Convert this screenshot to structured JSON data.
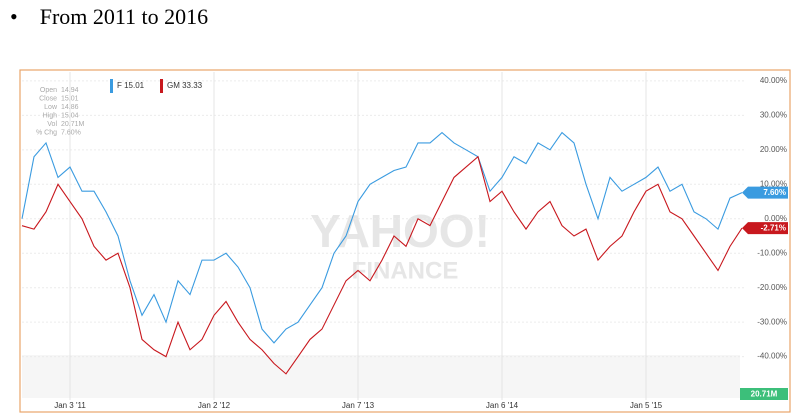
{
  "slide": {
    "bullet": "From 2011 to 2016"
  },
  "chart_data": {
    "type": "line",
    "categories": [
      null,
      null,
      null,
      null,
      "Jan 3 '11",
      null,
      null,
      null,
      null,
      null,
      null,
      null,
      null,
      null,
      null,
      null,
      "Jan 2 '12",
      null,
      null,
      null,
      null,
      null,
      null,
      null,
      null,
      null,
      null,
      null,
      "Jan 7 '13",
      null,
      null,
      null,
      null,
      null,
      null,
      null,
      null,
      null,
      null,
      null,
      "Jan 6 '14",
      null,
      null,
      null,
      null,
      null,
      null,
      null,
      null,
      null,
      null,
      null,
      "Jan 5 '15",
      null,
      null,
      null,
      null,
      null,
      null,
      null,
      null
    ],
    "series": [
      {
        "name": "F 15.01",
        "color": "#3a9be0",
        "values": [
          0,
          18,
          22,
          12,
          15,
          8,
          8,
          2,
          -5,
          -18,
          -28,
          -22,
          -30,
          -18,
          -22,
          -12,
          -12,
          -10,
          -14,
          -20,
          -32,
          -36,
          -32,
          -30,
          -25,
          -20,
          -10,
          -5,
          5,
          10,
          12,
          14,
          15,
          22,
          22,
          25,
          22,
          20,
          18,
          8,
          12,
          18,
          16,
          22,
          20,
          25,
          22,
          10,
          0,
          12,
          8,
          10,
          12,
          15,
          8,
          10,
          2,
          0,
          -3,
          6,
          7.6
        ],
        "value_labels": [
          null,
          null,
          null,
          null,
          null,
          null,
          null,
          null,
          null,
          null,
          null,
          null,
          null,
          null,
          null,
          null,
          null,
          null,
          null,
          null,
          null,
          null,
          null,
          null,
          null,
          null,
          null,
          null,
          null,
          null,
          null,
          null,
          null,
          null,
          null,
          null,
          null,
          null,
          null,
          null,
          null,
          null,
          null,
          null,
          null,
          null,
          null,
          null,
          null,
          null,
          null,
          null,
          null,
          null,
          null,
          null,
          null,
          null,
          null,
          null,
          "7.60%"
        ]
      },
      {
        "name": "GM 33.33",
        "color": "#c8181e",
        "values": [
          -2,
          -3,
          2,
          10,
          5,
          0,
          -8,
          -12,
          -10,
          -20,
          -35,
          -38,
          -40,
          -30,
          -38,
          -35,
          -28,
          -24,
          -30,
          -35,
          -38,
          -42,
          -45,
          -40,
          -35,
          -32,
          -25,
          -18,
          -15,
          -18,
          -12,
          -5,
          -8,
          0,
          -2,
          5,
          12,
          15,
          18,
          5,
          8,
          2,
          -3,
          2,
          5,
          -2,
          -5,
          -3,
          -12,
          -8,
          -5,
          2,
          8,
          10,
          2,
          0,
          -5,
          -10,
          -15,
          -8,
          -2.71
        ],
        "value_labels": [
          null,
          null,
          null,
          null,
          null,
          null,
          null,
          null,
          null,
          null,
          null,
          null,
          null,
          null,
          null,
          null,
          null,
          null,
          null,
          null,
          null,
          null,
          null,
          null,
          null,
          null,
          null,
          null,
          null,
          null,
          null,
          null,
          null,
          null,
          null,
          null,
          null,
          null,
          null,
          null,
          null,
          null,
          null,
          null,
          null,
          null,
          null,
          null,
          null,
          null,
          null,
          null,
          null,
          null,
          null,
          null,
          null,
          null,
          null,
          null,
          "-2.71%"
        ]
      }
    ],
    "ylim": [
      -52,
      42
    ],
    "yticks": [
      {
        "value": 40,
        "label": "40.00%"
      },
      {
        "value": 30,
        "label": "30.00%"
      },
      {
        "value": 20,
        "label": "20.00%"
      },
      {
        "value": 10,
        "label": "10.00%"
      },
      {
        "value": 0,
        "label": "0.00%"
      },
      {
        "value": -10,
        "label": "-10.00%"
      },
      {
        "value": -20,
        "label": "-20.00%"
      },
      {
        "value": -30,
        "label": "-30.00%"
      },
      {
        "value": -40,
        "label": "-40.00%"
      }
    ],
    "grid": true,
    "info": [
      [
        "Open",
        "14.94"
      ],
      [
        "Close",
        "15.01"
      ],
      [
        "Low",
        "14.86"
      ],
      [
        "High",
        "15.04"
      ],
      [
        "Vol",
        "20.71M"
      ],
      [
        "% Chg",
        "7.60%"
      ]
    ],
    "volume_label": "20.71M",
    "watermark": [
      "YAHOO!",
      "FINANCE"
    ]
  }
}
